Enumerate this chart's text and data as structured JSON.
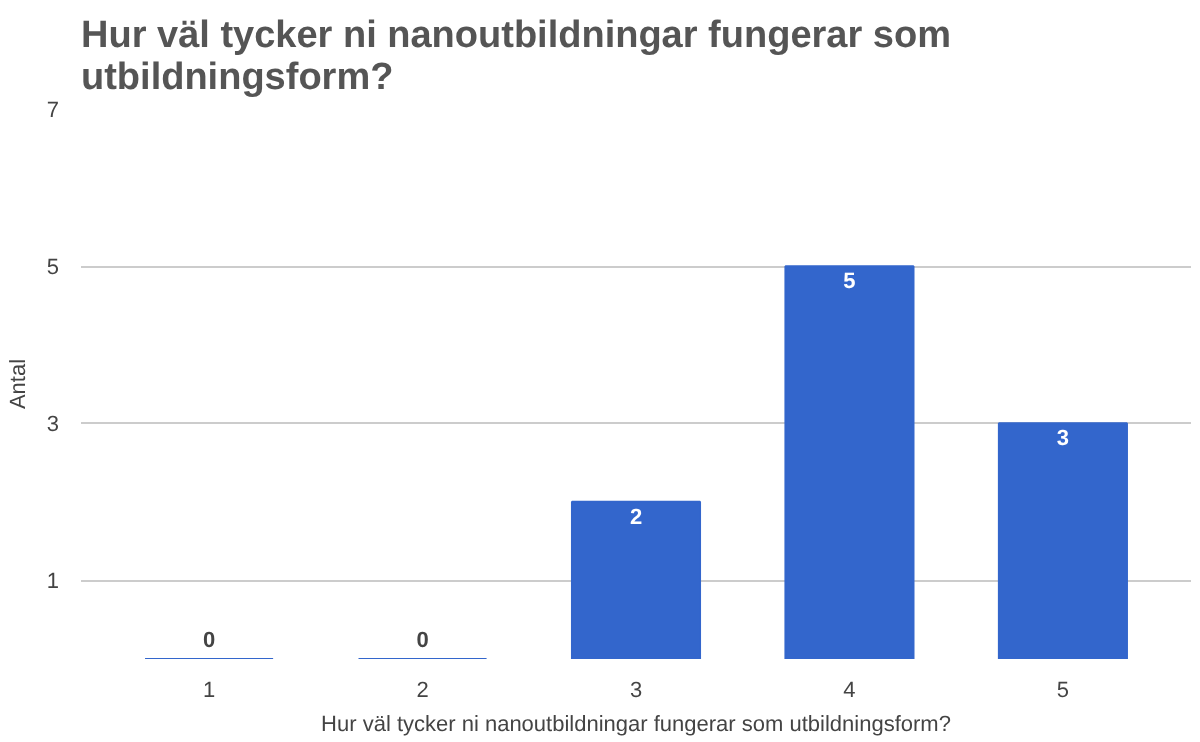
{
  "chart_data": {
    "type": "bar",
    "title": "Hur väl tycker ni nanoutbildningar fungerar som\nutbildningsform?",
    "xlabel": "Hur väl tycker ni nanoutbildningar fungerar som utbildningsform?",
    "ylabel": "Antal",
    "categories": [
      "1",
      "2",
      "3",
      "4",
      "5"
    ],
    "series": [
      {
        "color": "#3366cc",
        "values": [
          0,
          0,
          2,
          5,
          3
        ]
      }
    ],
    "ylim": [
      0,
      7
    ],
    "yticks": [
      1,
      3,
      5,
      7
    ],
    "grid": "y",
    "data_labels": true
  }
}
